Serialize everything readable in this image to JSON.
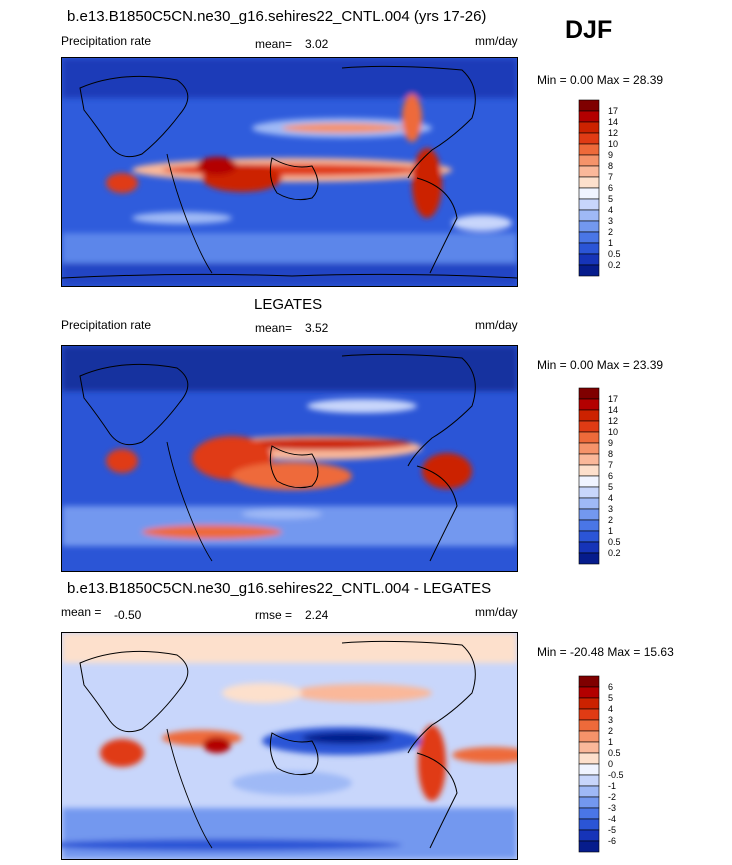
{
  "header": {
    "title": "b.e13.B1850C5CN.ne30_g16.sehires22_CNTL.004 (yrs 17-26)",
    "season": "DJF"
  },
  "panels": [
    {
      "title": "",
      "left_label": "Precipitation rate",
      "stat_label": "mean=",
      "stat_value": "3.02",
      "stat2_label": "",
      "stat2_value": "",
      "units": "mm/day",
      "minmax": "Min =   0.00 Max =  28.39"
    },
    {
      "title": "LEGATES",
      "left_label": "Precipitation rate",
      "stat_label": "mean=",
      "stat_value": "3.52",
      "stat2_label": "",
      "stat2_value": "",
      "units": "mm/day",
      "minmax": "Min =   0.00 Max =  23.39"
    },
    {
      "title": "b.e13.B1850C5CN.ne30_g16.sehires22_CNTL.004 - LEGATES",
      "left_label": "mean =",
      "stat_label": "",
      "stat_value": "-0.50",
      "stat2_label": "rmse =",
      "stat2_value": "2.24",
      "units": "mm/day",
      "minmax": "Min = -20.48 Max =  15.63"
    }
  ],
  "colorbars": {
    "precip": {
      "labels": [
        "17",
        "14",
        "12",
        "10",
        "9",
        "8",
        "7",
        "6",
        "5",
        "4",
        "3",
        "2",
        "1",
        "0.5",
        "0.2"
      ],
      "colors": [
        "#7f0000",
        "#b30000",
        "#cc2200",
        "#e03b14",
        "#ee6a3a",
        "#f5936a",
        "#fab89a",
        "#fde0cc",
        "#f0f4ff",
        "#c8d6fb",
        "#9fb9f6",
        "#7398ef",
        "#4a76e6",
        "#2b55d6",
        "#1634b8",
        "#061c8c"
      ]
    },
    "diff": {
      "labels": [
        "6",
        "5",
        "4",
        "3",
        "2",
        "1",
        "0.5",
        "0",
        "-0.5",
        "-1",
        "-2",
        "-3",
        "-4",
        "-5",
        "-6"
      ],
      "colors": [
        "#7f0000",
        "#b30000",
        "#cc2200",
        "#e03b14",
        "#ee6a3a",
        "#f5936a",
        "#fab89a",
        "#fde0cc",
        "#f0f4ff",
        "#c8d6fb",
        "#9fb9f6",
        "#7398ef",
        "#4a76e6",
        "#2b55d6",
        "#1634b8",
        "#061c8c"
      ]
    }
  }
}
